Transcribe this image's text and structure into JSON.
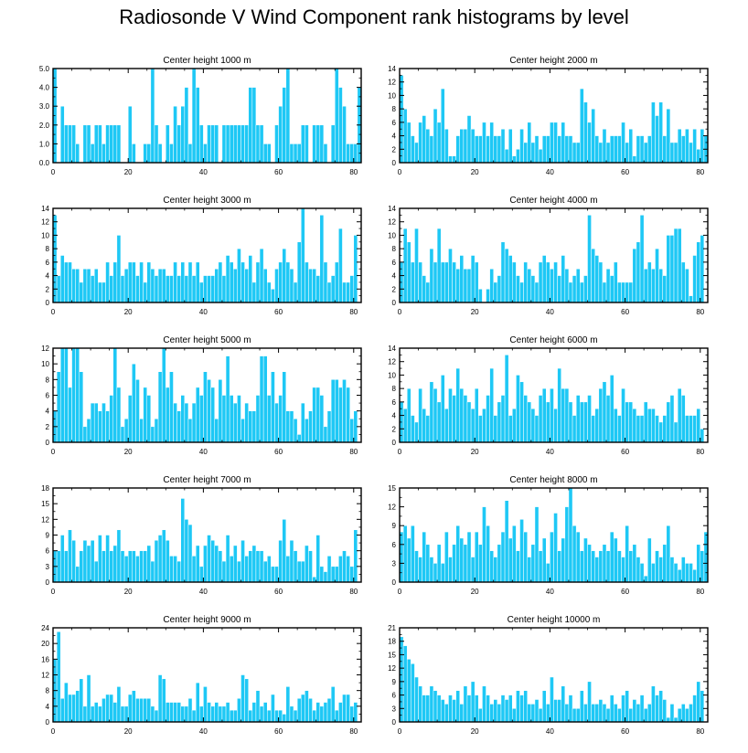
{
  "title": "Radiosonde V Wind Component rank histograms by level",
  "colors": {
    "bar": "#1ec8f5",
    "bar_edge": "#ffffff",
    "axis": "#000000"
  },
  "chart_data": [
    {
      "type": "bar",
      "title": "Center height 1000 m",
      "x_start": 0,
      "xlim": [
        0,
        82
      ],
      "xticks": [
        0,
        20,
        40,
        60,
        80
      ],
      "ylim": [
        0,
        5
      ],
      "yticks": [
        "0.0",
        "1.0",
        "2.0",
        "3.0",
        "4.0",
        "5.0"
      ],
      "ytick_values": [
        0,
        1,
        2,
        3,
        4,
        5
      ],
      "values": [
        5,
        0,
        3,
        2,
        2,
        2,
        1,
        0,
        2,
        2,
        1,
        2,
        2,
        1,
        2,
        2,
        2,
        2,
        0,
        0,
        3,
        1,
        0,
        0,
        1,
        1,
        5,
        2,
        1,
        0,
        2,
        1,
        3,
        2,
        3,
        4,
        1,
        5,
        4,
        2,
        1,
        2,
        2,
        2,
        0,
        2,
        2,
        2,
        2,
        2,
        2,
        2,
        4,
        4,
        2,
        2,
        1,
        1,
        0,
        2,
        3,
        4,
        5,
        1,
        1,
        1,
        2,
        2,
        0,
        2,
        2,
        2,
        1,
        0,
        2,
        5,
        4,
        3,
        1,
        1,
        1,
        4
      ]
    },
    {
      "type": "bar",
      "title": "Center height 2000 m",
      "x_start": 0,
      "xlim": [
        0,
        82
      ],
      "xticks": [
        0,
        20,
        40,
        60,
        80
      ],
      "ylim": [
        0,
        14
      ],
      "yticks": [
        "0",
        "2",
        "4",
        "6",
        "8",
        "10",
        "12",
        "14"
      ],
      "ytick_values": [
        0,
        2,
        4,
        6,
        8,
        10,
        12,
        14
      ],
      "values": [
        13,
        8,
        6,
        4,
        3,
        6,
        7,
        5,
        4,
        8,
        6,
        11,
        5,
        1,
        1,
        4,
        5,
        5,
        7,
        5,
        4,
        4,
        6,
        4,
        6,
        4,
        4,
        5,
        2,
        5,
        1,
        2,
        5,
        3,
        6,
        3,
        4,
        2,
        4,
        4,
        6,
        6,
        4,
        6,
        4,
        4,
        3,
        3,
        11,
        9,
        6,
        8,
        4,
        3,
        5,
        3,
        4,
        4,
        4,
        6,
        3,
        5,
        1,
        4,
        4,
        3,
        4,
        9,
        7,
        9,
        4,
        8,
        3,
        3,
        5,
        4,
        5,
        3,
        5,
        2,
        5,
        4
      ]
    },
    {
      "type": "bar",
      "title": "Center height 3000 m",
      "x_start": 0,
      "xlim": [
        0,
        82
      ],
      "xticks": [
        0,
        20,
        40,
        60,
        80
      ],
      "ylim": [
        0,
        14
      ],
      "yticks": [
        "0",
        "2",
        "4",
        "6",
        "8",
        "10",
        "12",
        "14"
      ],
      "ytick_values": [
        0,
        2,
        4,
        6,
        8,
        10,
        12,
        14
      ],
      "values": [
        13,
        4,
        7,
        6,
        6,
        5,
        5,
        3,
        5,
        5,
        4,
        5,
        3,
        3,
        6,
        4,
        6,
        10,
        4,
        5,
        6,
        6,
        4,
        6,
        3,
        6,
        5,
        4,
        5,
        5,
        4,
        4,
        6,
        4,
        6,
        4,
        6,
        4,
        6,
        3,
        4,
        4,
        4,
        5,
        6,
        4,
        7,
        6,
        5,
        8,
        6,
        5,
        7,
        3,
        6,
        8,
        5,
        3,
        2,
        5,
        6,
        8,
        6,
        5,
        3,
        9,
        14,
        6,
        5,
        5,
        4,
        13,
        6,
        3,
        4,
        6,
        11,
        3,
        3,
        4,
        10
      ]
    },
    {
      "type": "bar",
      "title": "Center height 4000 m",
      "x_start": 0,
      "xlim": [
        0,
        82
      ],
      "xticks": [
        0,
        20,
        40,
        60,
        80
      ],
      "ylim": [
        0,
        14
      ],
      "yticks": [
        "0",
        "2",
        "4",
        "6",
        "8",
        "10",
        "12",
        "14"
      ],
      "ytick_values": [
        0,
        2,
        4,
        6,
        8,
        10,
        12,
        14
      ],
      "values": [
        6,
        11,
        9,
        6,
        11,
        6,
        4,
        3,
        8,
        6,
        11,
        6,
        6,
        8,
        6,
        5,
        7,
        5,
        5,
        7,
        6,
        2,
        0,
        2,
        5,
        3,
        4,
        9,
        8,
        7,
        6,
        4,
        3,
        6,
        5,
        4,
        3,
        6,
        7,
        6,
        5,
        6,
        4,
        7,
        5,
        3,
        4,
        5,
        3,
        4,
        13,
        8,
        7,
        6,
        3,
        5,
        4,
        6,
        3,
        3,
        3,
        3,
        8,
        9,
        13,
        5,
        6,
        5,
        8,
        5,
        4,
        10,
        10,
        11,
        11,
        6,
        5,
        1,
        7,
        9,
        10
      ]
    },
    {
      "type": "bar",
      "title": "Center height 5000 m",
      "x_start": 0,
      "xlim": [
        0,
        82
      ],
      "xticks": [
        0,
        20,
        40,
        60,
        80
      ],
      "ylim": [
        0,
        12
      ],
      "yticks": [
        "0",
        "2",
        "4",
        "6",
        "8",
        "10",
        "12"
      ],
      "ytick_values": [
        0,
        2,
        4,
        6,
        8,
        10,
        12
      ],
      "values": [
        4,
        9,
        12,
        12,
        7,
        12,
        12,
        9,
        2,
        3,
        5,
        5,
        4,
        5,
        4,
        6,
        12,
        7,
        2,
        3,
        6,
        10,
        8,
        3,
        7,
        6,
        2,
        3,
        9,
        12,
        7,
        9,
        5,
        4,
        6,
        5,
        3,
        5,
        7,
        6,
        9,
        8,
        7,
        3,
        8,
        6,
        11,
        6,
        5,
        6,
        3,
        5,
        4,
        4,
        6,
        11,
        11,
        6,
        9,
        5,
        6,
        9,
        4,
        4,
        3,
        1,
        5,
        3,
        4,
        7,
        7,
        6,
        2,
        4,
        8,
        8,
        7,
        8,
        7,
        3,
        4
      ]
    },
    {
      "type": "bar",
      "title": "Center height 6000 m",
      "x_start": 0,
      "xlim": [
        0,
        82
      ],
      "xticks": [
        0,
        20,
        40,
        60,
        80
      ],
      "ylim": [
        0,
        14
      ],
      "yticks": [
        "0",
        "2",
        "4",
        "6",
        "8",
        "10",
        "12",
        "14"
      ],
      "ytick_values": [
        0,
        2,
        4,
        6,
        8,
        10,
        12,
        14
      ],
      "values": [
        6,
        5,
        8,
        4,
        3,
        8,
        5,
        4,
        9,
        8,
        6,
        10,
        5,
        8,
        7,
        11,
        8,
        7,
        6,
        5,
        8,
        4,
        5,
        7,
        11,
        4,
        6,
        7,
        13,
        4,
        5,
        10,
        9,
        7,
        6,
        5,
        4,
        7,
        8,
        6,
        8,
        5,
        11,
        8,
        8,
        6,
        4,
        7,
        6,
        6,
        7,
        4,
        5,
        8,
        9,
        7,
        10,
        5,
        4,
        8,
        6,
        6,
        5,
        4,
        4,
        6,
        5,
        5,
        4,
        3,
        4,
        6,
        7,
        3,
        8,
        7,
        4,
        4,
        4,
        5,
        2
      ]
    },
    {
      "type": "bar",
      "title": "Center height 7000 m",
      "x_start": 0,
      "xlim": [
        0,
        82
      ],
      "xticks": [
        0,
        20,
        40,
        60,
        80
      ],
      "ylim": [
        0,
        18
      ],
      "yticks": [
        "0",
        "3",
        "6",
        "9",
        "12",
        "15",
        "18"
      ],
      "ytick_values": [
        0,
        3,
        6,
        9,
        12,
        15,
        18
      ],
      "values": [
        6,
        6,
        9,
        6,
        10,
        8,
        3,
        6,
        8,
        7,
        8,
        4,
        9,
        6,
        9,
        6,
        7,
        10,
        6,
        5,
        6,
        6,
        5,
        6,
        6,
        7,
        4,
        8,
        9,
        10,
        8,
        5,
        5,
        4,
        16,
        12,
        11,
        5,
        7,
        3,
        7,
        9,
        8,
        7,
        6,
        4,
        9,
        5,
        7,
        4,
        8,
        5,
        6,
        7,
        6,
        6,
        4,
        5,
        3,
        3,
        8,
        12,
        5,
        8,
        6,
        4,
        4,
        7,
        6,
        1,
        9,
        3,
        2,
        5,
        3,
        3,
        5,
        6,
        5,
        3,
        10
      ]
    },
    {
      "type": "bar",
      "title": "Center height 8000 m",
      "x_start": 0,
      "xlim": [
        0,
        82
      ],
      "xticks": [
        0,
        20,
        40,
        60,
        80
      ],
      "ylim": [
        0,
        15
      ],
      "yticks": [
        "0",
        "3",
        "6",
        "9",
        "12",
        "15"
      ],
      "ytick_values": [
        0,
        3,
        6,
        9,
        12,
        15
      ],
      "values": [
        8,
        9,
        7,
        9,
        5,
        4,
        8,
        6,
        4,
        3,
        6,
        3,
        8,
        4,
        6,
        9,
        7,
        6,
        8,
        4,
        8,
        6,
        12,
        9,
        5,
        4,
        6,
        8,
        13,
        7,
        9,
        5,
        10,
        8,
        4,
        6,
        12,
        5,
        7,
        3,
        8,
        11,
        5,
        7,
        12,
        15,
        9,
        8,
        5,
        7,
        6,
        5,
        4,
        5,
        6,
        5,
        8,
        7,
        5,
        4,
        9,
        5,
        6,
        4,
        3,
        1,
        7,
        3,
        5,
        4,
        6,
        9,
        4,
        3,
        2,
        4,
        3,
        3,
        2,
        6,
        5,
        8
      ]
    },
    {
      "type": "bar",
      "title": "Center height 9000 m",
      "x_start": 0,
      "xlim": [
        0,
        82
      ],
      "xticks": [
        0,
        20,
        40,
        60,
        80
      ],
      "ylim": [
        0,
        24
      ],
      "yticks": [
        "0",
        "4",
        "8",
        "12",
        "16",
        "20",
        "24"
      ],
      "ytick_values": [
        0,
        4,
        8,
        12,
        16,
        20,
        24
      ],
      "values": [
        16,
        23,
        6,
        10,
        7,
        7,
        8,
        11,
        4,
        12,
        4,
        5,
        4,
        6,
        7,
        7,
        5,
        9,
        4,
        4,
        7,
        8,
        6,
        6,
        6,
        6,
        4,
        3,
        12,
        11,
        5,
        5,
        5,
        5,
        4,
        4,
        6,
        3,
        10,
        4,
        9,
        5,
        4,
        5,
        4,
        4,
        5,
        3,
        3,
        6,
        12,
        11,
        3,
        5,
        8,
        4,
        5,
        3,
        7,
        3,
        3,
        2,
        9,
        4,
        3,
        6,
        7,
        8,
        6,
        3,
        5,
        4,
        5,
        6,
        9,
        3,
        5,
        7,
        7,
        4,
        5
      ]
    },
    {
      "type": "bar",
      "title": "Center height 10000 m",
      "x_start": 0,
      "xlim": [
        0,
        82
      ],
      "xticks": [
        0,
        20,
        40,
        60,
        80
      ],
      "ylim": [
        0,
        21
      ],
      "yticks": [
        "0",
        "3",
        "6",
        "9",
        "12",
        "15",
        "18",
        "21"
      ],
      "ytick_values": [
        0,
        3,
        6,
        9,
        12,
        15,
        18,
        21
      ],
      "values": [
        19,
        17,
        14,
        13,
        10,
        8,
        6,
        6,
        8,
        7,
        6,
        5,
        4,
        6,
        5,
        7,
        4,
        8,
        6,
        9,
        6,
        3,
        8,
        6,
        4,
        5,
        4,
        6,
        5,
        6,
        3,
        7,
        6,
        7,
        4,
        4,
        5,
        3,
        7,
        4,
        10,
        5,
        5,
        8,
        4,
        6,
        3,
        3,
        7,
        4,
        9,
        4,
        4,
        5,
        4,
        3,
        6,
        4,
        3,
        6,
        7,
        3,
        5,
        4,
        6,
        3,
        4,
        8,
        6,
        7,
        5,
        1,
        4,
        1,
        3,
        4,
        3,
        4,
        6,
        9,
        7
      ]
    }
  ]
}
